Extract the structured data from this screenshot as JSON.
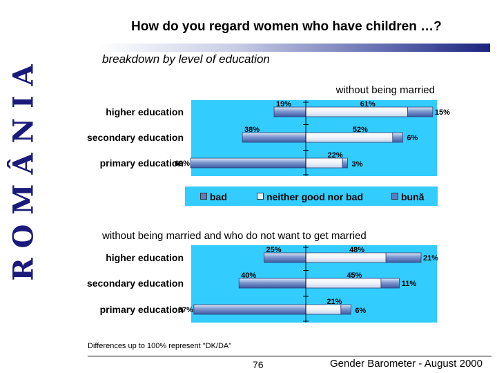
{
  "side_text": "R O M Â N I A",
  "title": "How do you regard women who have children …?",
  "subtitle": "breakdown by level of education",
  "legend": {
    "bad": "bad",
    "neither": "neither good nor bad",
    "good": "bună"
  },
  "colors": {
    "background_panel": "#33ccff",
    "bar_dark": "#5d7cc0",
    "bar_light": "#eef3fb",
    "axis": "#000000"
  },
  "chart_data": [
    {
      "type": "bar",
      "title": "without being married",
      "categories": [
        "higher education",
        "secondary education",
        "primary education"
      ],
      "series": [
        {
          "name": "bad",
          "values": [
            19,
            38,
            69
          ]
        },
        {
          "name": "neither good nor bad",
          "values": [
            61,
            52,
            22
          ]
        },
        {
          "name": "bună",
          "values": [
            15,
            6,
            3
          ]
        }
      ],
      "labels": [
        [
          "19%",
          "61%",
          "15%"
        ],
        [
          "38%",
          "52%",
          "6%"
        ],
        [
          "69%",
          "22%",
          "3%"
        ]
      ]
    },
    {
      "type": "bar",
      "title": "without being married and who do not want to get married",
      "categories": [
        "higher education",
        "secondary education",
        "primary education"
      ],
      "series": [
        {
          "name": "bad",
          "values": [
            25,
            40,
            67
          ]
        },
        {
          "name": "neither good nor bad",
          "values": [
            48,
            45,
            21
          ]
        },
        {
          "name": "bună",
          "values": [
            21,
            11,
            6
          ]
        }
      ],
      "labels": [
        [
          "25%",
          "48%",
          "21%"
        ],
        [
          "40%",
          "45%",
          "11%"
        ],
        [
          "67%",
          "21%",
          "6%"
        ]
      ]
    }
  ],
  "footnote": "Differences up to 100% represent \"DK/DA\"",
  "page_number": "76",
  "footer": "Gender Barometer - August 2000"
}
